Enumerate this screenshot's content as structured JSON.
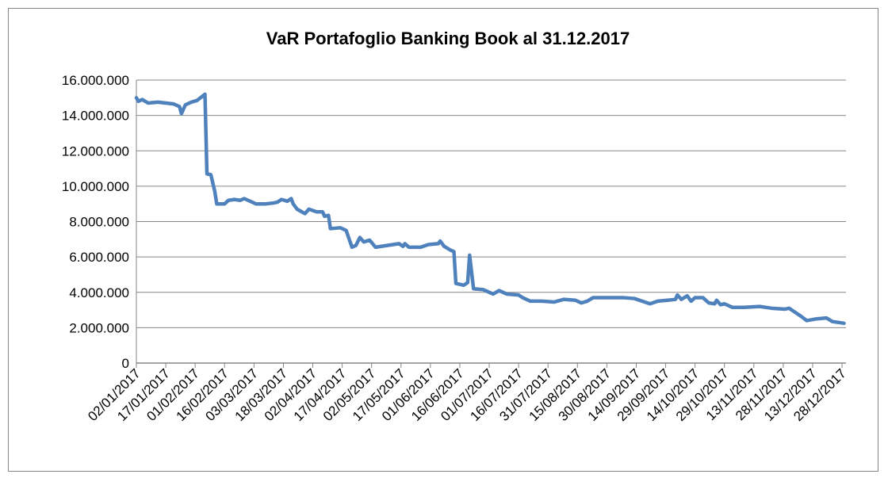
{
  "chart_data": {
    "type": "line",
    "title": "VaR Portafoglio Banking Book al 31.12.2017",
    "color": "#4f81bd",
    "grid": true,
    "ylim": [
      0,
      16000000
    ],
    "yticks": [
      0,
      {
        "value": 2000000,
        "label": "2.000.000"
      },
      {
        "value": 4000000,
        "label": "4.000.000"
      },
      {
        "value": 6000000,
        "label": "6.000.000"
      },
      {
        "value": 8000000,
        "label": "8.000.000"
      },
      {
        "value": 10000000,
        "label": "10.000.000"
      },
      {
        "value": 12000000,
        "label": "12.000.000"
      },
      {
        "value": 14000000,
        "label": "14.000.000"
      },
      {
        "value": 16000000,
        "label": "16.000.000"
      }
    ],
    "xlim": [
      "02/01/2017",
      "30/12/2017"
    ],
    "xticks": [
      "02/01/2017",
      "17/01/2017",
      "01/02/2017",
      "16/02/2017",
      "03/03/2017",
      "18/03/2017",
      "02/04/2017",
      "17/04/2017",
      "02/05/2017",
      "17/05/2017",
      "01/06/2017",
      "16/06/2017",
      "01/07/2017",
      "16/07/2017",
      "31/07/2017",
      "15/08/2017",
      "30/08/2017",
      "14/09/2017",
      "29/09/2017",
      "14/10/2017",
      "29/10/2017",
      "13/11/2017",
      "28/11/2017",
      "13/12/2017",
      "28/12/2017"
    ],
    "x": [
      "02/01/2017",
      "03/01/2017",
      "05/01/2017",
      "08/01/2017",
      "13/01/2017",
      "17/01/2017",
      "21/01/2017",
      "24/01/2017",
      "25/01/2017",
      "27/01/2017",
      "30/01/2017",
      "02/02/2017",
      "06/02/2017",
      "07/02/2017",
      "09/02/2017",
      "11/02/2017",
      "12/02/2017",
      "16/02/2017",
      "18/02/2017",
      "21/02/2017",
      "24/02/2017",
      "26/02/2017",
      "01/03/2017",
      "04/03/2017",
      "09/03/2017",
      "13/03/2017",
      "15/03/2017",
      "17/03/2017",
      "20/03/2017",
      "22/03/2017",
      "23/03/2017",
      "25/03/2017",
      "29/03/2017",
      "31/03/2017",
      "04/04/2017",
      "07/04/2017",
      "08/04/2017",
      "10/04/2017",
      "11/04/2017",
      "16/04/2017",
      "19/04/2017",
      "22/04/2017",
      "24/04/2017",
      "26/04/2017",
      "28/04/2017",
      "01/05/2017",
      "04/05/2017",
      "10/05/2017",
      "16/05/2017",
      "18/05/2017",
      "19/05/2017",
      "21/05/2017",
      "27/05/2017",
      "31/05/2017",
      "05/06/2017",
      "06/06/2017",
      "08/06/2017",
      "11/06/2017",
      "13/06/2017",
      "14/06/2017",
      "18/06/2017",
      "20/06/2017",
      "21/06/2017",
      "23/06/2017",
      "28/06/2017",
      "03/07/2017",
      "06/07/2017",
      "10/07/2017",
      "16/07/2017",
      "18/07/2017",
      "22/07/2017",
      "28/07/2017",
      "03/08/2017",
      "08/08/2017",
      "14/08/2017",
      "17/08/2017",
      "20/08/2017",
      "23/08/2017",
      "01/09/2017",
      "07/09/2017",
      "13/09/2017",
      "17/09/2017",
      "21/09/2017",
      "25/09/2017",
      "30/09/2017",
      "04/10/2017",
      "05/10/2017",
      "07/10/2017",
      "10/10/2017",
      "12/10/2017",
      "14/10/2017",
      "18/10/2017",
      "21/10/2017",
      "24/10/2017",
      "25/10/2017",
      "27/10/2017",
      "29/10/2017",
      "02/11/2017",
      "08/11/2017",
      "16/11/2017",
      "22/11/2017",
      "29/11/2017",
      "01/12/2017",
      "03/12/2017",
      "07/12/2017",
      "10/12/2017",
      "15/12/2017",
      "20/12/2017",
      "23/12/2017",
      "29/12/2017"
    ],
    "values": [
      15000000,
      14800000,
      14900000,
      14700000,
      14750000,
      14700000,
      14650000,
      14500000,
      14100000,
      14600000,
      14750000,
      14850000,
      15200000,
      10700000,
      10650000,
      9700000,
      9000000,
      9000000,
      9200000,
      9250000,
      9200000,
      9300000,
      9150000,
      9000000,
      9000000,
      9050000,
      9100000,
      9250000,
      9150000,
      9300000,
      9000000,
      8700000,
      8450000,
      8700000,
      8550000,
      8550000,
      8300000,
      8350000,
      7600000,
      7650000,
      7500000,
      6550000,
      6650000,
      7100000,
      6850000,
      6950000,
      6550000,
      6650000,
      6750000,
      6600000,
      6750000,
      6550000,
      6550000,
      6700000,
      6750000,
      6900000,
      6600000,
      6400000,
      6300000,
      4500000,
      4400000,
      4550000,
      6100000,
      4200000,
      4150000,
      3900000,
      4100000,
      3900000,
      3850000,
      3700000,
      3500000,
      3500000,
      3450000,
      3600000,
      3550000,
      3400000,
      3500000,
      3700000,
      3700000,
      3700000,
      3650000,
      3500000,
      3350000,
      3500000,
      3550000,
      3600000,
      3850000,
      3600000,
      3800000,
      3500000,
      3700000,
      3700000,
      3400000,
      3350000,
      3550000,
      3300000,
      3350000,
      3150000,
      3150000,
      3200000,
      3100000,
      3050000,
      3100000,
      2950000,
      2650000,
      2400000,
      2500000,
      2550000,
      2350000,
      2250000
    ]
  }
}
